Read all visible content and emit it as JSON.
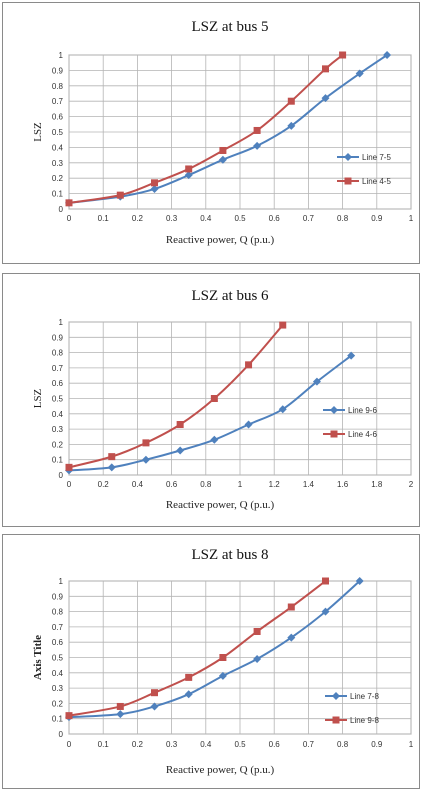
{
  "chart_data": [
    {
      "type": "line",
      "title": "LSZ at bus 5",
      "xlabel": "Reactive power, Q (p.u.)",
      "ylabel": "LSZ",
      "xlim": [
        0,
        1
      ],
      "ylim": [
        0,
        1
      ],
      "xticks": [
        "0",
        "0.1",
        "0.2",
        "0.3",
        "0.4",
        "0.5",
        "0.6",
        "0.7",
        "0.8",
        "0.9",
        "1"
      ],
      "yticks": [
        "0",
        "0.1",
        "0.2",
        "0.3",
        "0.4",
        "0.5",
        "0.6",
        "0.7",
        "0.8",
        "0.9",
        "1"
      ],
      "grid": true,
      "legend_position": "right",
      "series": [
        {
          "name": "Line 7-5",
          "color": "#4f81bd",
          "marker": "diamond",
          "x": [
            0,
            0.15,
            0.25,
            0.35,
            0.45,
            0.55,
            0.65,
            0.75,
            0.85,
            0.93
          ],
          "y": [
            0.04,
            0.08,
            0.13,
            0.22,
            0.32,
            0.41,
            0.54,
            0.72,
            0.88,
            1.0
          ]
        },
        {
          "name": "Line 4-5",
          "color": "#c0504d",
          "marker": "square",
          "x": [
            0,
            0.15,
            0.25,
            0.35,
            0.45,
            0.55,
            0.65,
            0.75,
            0.8
          ],
          "y": [
            0.04,
            0.09,
            0.17,
            0.26,
            0.38,
            0.51,
            0.7,
            0.91,
            1.0
          ]
        }
      ]
    },
    {
      "type": "line",
      "title": "LSZ at bus 6",
      "xlabel": "Reactive  power, Q (p.u.)",
      "ylabel": "LSZ",
      "xlim": [
        0,
        2
      ],
      "ylim": [
        0,
        1
      ],
      "xticks": [
        "0",
        "0.2",
        "0.4",
        "0.6",
        "0.8",
        "1",
        "1.2",
        "1.4",
        "1.6",
        "1.8",
        "2"
      ],
      "yticks": [
        "0",
        "0.1",
        "0.2",
        "0.3",
        "0.4",
        "0.5",
        "0.6",
        "0.7",
        "0.8",
        "0.9",
        "1"
      ],
      "grid": true,
      "legend_position": "right",
      "series": [
        {
          "name": "Line 9-6",
          "color": "#4f81bd",
          "marker": "diamond",
          "x": [
            0,
            0.25,
            0.45,
            0.65,
            0.85,
            1.05,
            1.25,
            1.45,
            1.65
          ],
          "y": [
            0.03,
            0.05,
            0.1,
            0.16,
            0.23,
            0.33,
            0.43,
            0.61,
            0.78
          ]
        },
        {
          "name": "Line 4-6",
          "color": "#c0504d",
          "marker": "square",
          "x": [
            0,
            0.25,
            0.45,
            0.65,
            0.85,
            1.05,
            1.25
          ],
          "y": [
            0.05,
            0.12,
            0.21,
            0.33,
            0.5,
            0.72,
            0.98
          ]
        }
      ]
    },
    {
      "type": "line",
      "title": "LSZ at bus 8",
      "xlabel": "Reactive  power, Q (p.u.)",
      "ylabel": "Axis Title",
      "xlim": [
        0,
        1
      ],
      "ylim": [
        0,
        1
      ],
      "xticks": [
        "0",
        "0.1",
        "0.2",
        "0.3",
        "0.4",
        "0.5",
        "0.6",
        "0.7",
        "0.8",
        "0.9",
        "1"
      ],
      "yticks": [
        "0",
        "0.1",
        "0.2",
        "0.3",
        "0.4",
        "0.5",
        "0.6",
        "0.7",
        "0.8",
        "0.9",
        "1"
      ],
      "grid": true,
      "legend_position": "right",
      "series": [
        {
          "name": "Line 7-8",
          "color": "#4f81bd",
          "marker": "diamond",
          "x": [
            0,
            0.15,
            0.25,
            0.35,
            0.45,
            0.55,
            0.65,
            0.75,
            0.85
          ],
          "y": [
            0.11,
            0.13,
            0.18,
            0.26,
            0.38,
            0.49,
            0.63,
            0.8,
            1.0
          ]
        },
        {
          "name": "Line 9-8",
          "color": "#c0504d",
          "marker": "square",
          "x": [
            0,
            0.15,
            0.25,
            0.35,
            0.45,
            0.55,
            0.65,
            0.75
          ],
          "y": [
            0.12,
            0.18,
            0.27,
            0.37,
            0.5,
            0.67,
            0.83,
            1.0
          ]
        }
      ]
    }
  ]
}
